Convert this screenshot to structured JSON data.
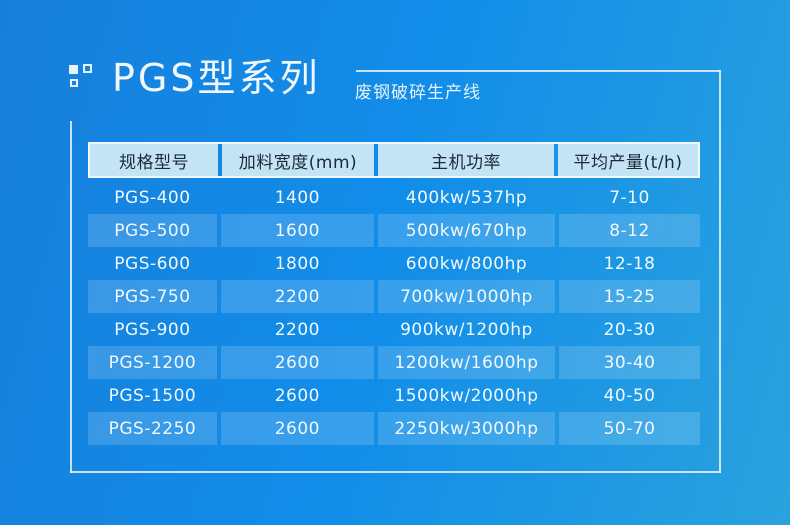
{
  "header": {
    "title": "PGS型系列",
    "subtitle": "废钢破碎生产线",
    "icon": "squares-icon"
  },
  "chart_data": {
    "type": "table",
    "title": "PGS型系列",
    "subtitle": "废钢破碎生产线",
    "columns": [
      "规格型号",
      "加料宽度(mm)",
      "主机功率",
      "平均产量(t/h)"
    ],
    "rows": [
      [
        "PGS-400",
        "1400",
        "400kw/537hp",
        "7-10"
      ],
      [
        "PGS-500",
        "1600",
        "500kw/670hp",
        "8-12"
      ],
      [
        "PGS-600",
        "1800",
        "600kw/800hp",
        "12-18"
      ],
      [
        "PGS-750",
        "2200",
        "700kw/1000hp",
        "15-25"
      ],
      [
        "PGS-900",
        "2200",
        "900kw/1200hp",
        "20-30"
      ],
      [
        "PGS-1200",
        "2600",
        "1200kw/1600hp",
        "30-40"
      ],
      [
        "PGS-1500",
        "2600",
        "1500kw/2000hp",
        "40-50"
      ],
      [
        "PGS-2250",
        "2600",
        "2250kw/3000hp",
        "50-70"
      ]
    ],
    "layout_hints": {
      "striped_rows": "even rows highlighted",
      "header_position": "top"
    }
  },
  "colors": {
    "bg_top_left": "#177fdb",
    "bg_mid": "#118de9",
    "bg_right": "#2aa2de",
    "title_text": "#f0f8fd",
    "subtitle_text": "#e8f3fb",
    "icon_color": "#e6f3fb",
    "frame_line": "rgba(238,247,253,0.82)",
    "header_border": "rgba(252,254,255,0.95)",
    "header_cell_bg": "#c3e4f5",
    "header_text": "#1c2a36",
    "row_text": "#f0f8fd",
    "even_row_bg": "rgba(255,255,255,0.16)"
  }
}
